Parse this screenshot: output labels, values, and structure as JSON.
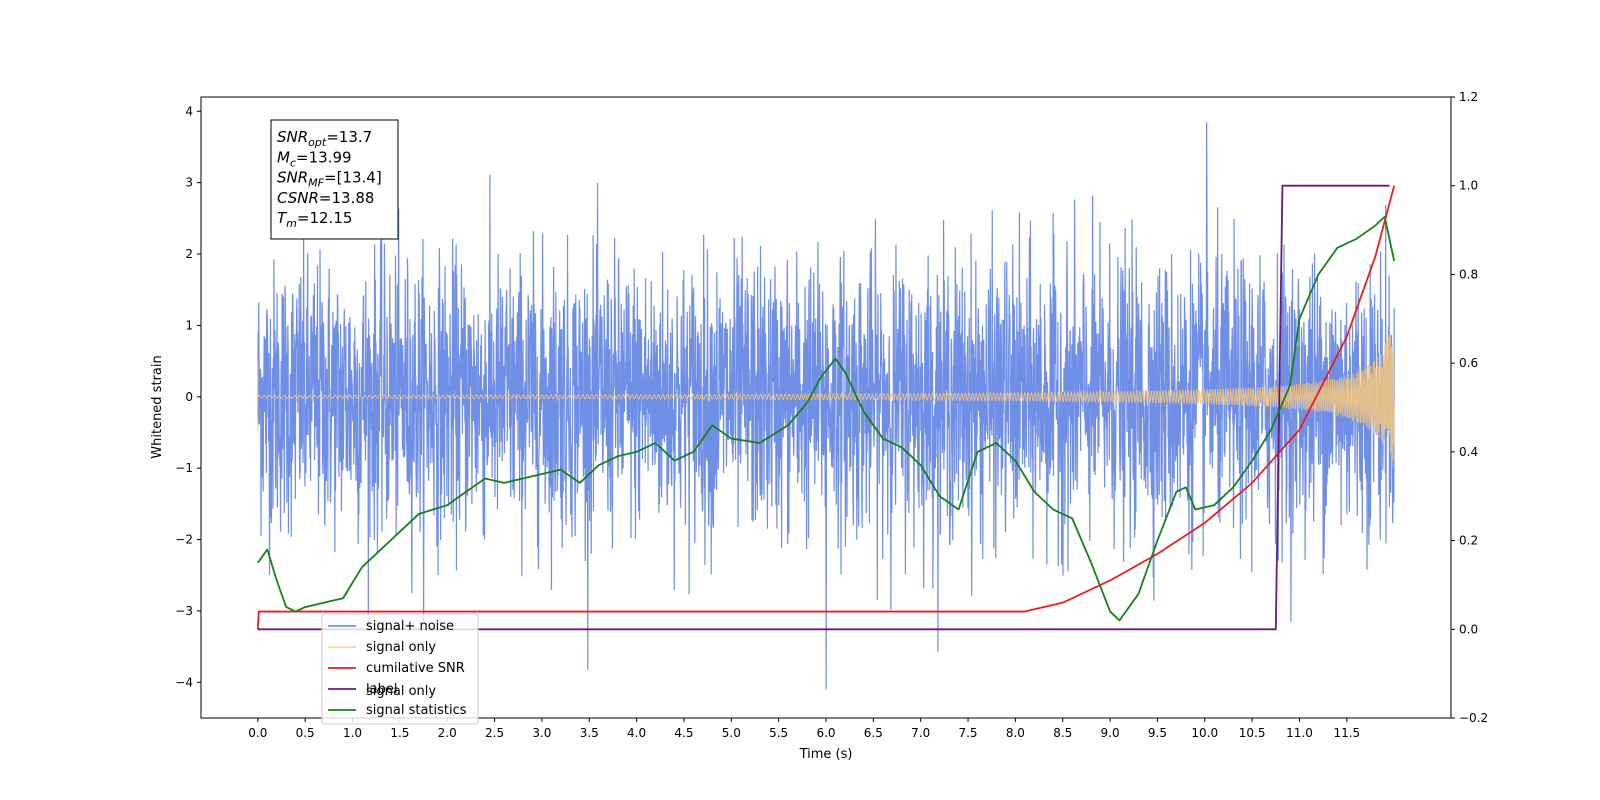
{
  "chart_data": {
    "type": "line",
    "xlabel": "Time (s)",
    "ylabel": "Whitened strain",
    "xlim": [
      -0.6,
      12.6
    ],
    "ylim": [
      -4.5,
      4.2
    ],
    "y2lim": [
      -0.2,
      1.2
    ],
    "x_ticks": [
      "0.0",
      "0.5",
      "1.0",
      "1.5",
      "2.0",
      "2.5",
      "3.0",
      "3.5",
      "4.0",
      "4.5",
      "5.0",
      "5.5",
      "6.0",
      "6.5",
      "7.0",
      "7.5",
      "8.0",
      "8.5",
      "9.0",
      "9.5",
      "10.0",
      "10.5",
      "11.0",
      "11.5"
    ],
    "y_ticks": [
      "−4",
      "−3",
      "−2",
      "−1",
      "0",
      "1",
      "2",
      "3",
      "4"
    ],
    "y2_ticks": [
      "−0.2",
      "0.0",
      "0.2",
      "0.4",
      "0.6",
      "0.8",
      "1.0",
      "1.2"
    ],
    "grid": false,
    "legend_position": "lower-left",
    "series": [
      {
        "name": "signal+ noise",
        "color": "#6f8ee6",
        "axis": "left",
        "kind": "noise",
        "x_range": [
          0.0,
          12.0
        ],
        "std": 0.95,
        "extremes": [
          -4.1,
          3.85
        ]
      },
      {
        "name": "signal only",
        "color": "#f5c77e",
        "axis": "left",
        "kind": "chirp",
        "x_range": [
          0.0,
          12.0
        ],
        "final_amplitude": 1.15,
        "merger_time": 12.15
      },
      {
        "name": "cumilative SNR",
        "color": "#ee1c1c",
        "axis": "right",
        "kind": "curve",
        "points": [
          [
            0.0,
            0.0
          ],
          [
            0.01,
            0.04
          ],
          [
            8.1,
            0.04
          ],
          [
            8.5,
            0.06
          ],
          [
            9.0,
            0.11
          ],
          [
            9.5,
            0.17
          ],
          [
            10.0,
            0.24
          ],
          [
            10.5,
            0.33
          ],
          [
            11.0,
            0.45
          ],
          [
            11.5,
            0.66
          ],
          [
            11.8,
            0.84
          ],
          [
            12.0,
            1.0
          ]
        ]
      },
      {
        "name": "label",
        "color": "#6a1a7a",
        "axis": "right",
        "kind": "curve",
        "points": [
          [
            0.0,
            0.0
          ],
          [
            10.75,
            0.0
          ],
          [
            10.82,
            1.0
          ],
          [
            11.95,
            1.0
          ]
        ]
      },
      {
        "name": "signal statistics",
        "color": "#1a7f1a",
        "axis": "right",
        "kind": "curve",
        "points": [
          [
            0.0,
            0.15
          ],
          [
            0.1,
            0.18
          ],
          [
            0.2,
            0.11
          ],
          [
            0.3,
            0.05
          ],
          [
            0.4,
            0.04
          ],
          [
            0.5,
            0.05
          ],
          [
            0.7,
            0.06
          ],
          [
            0.9,
            0.07
          ],
          [
            1.1,
            0.14
          ],
          [
            1.3,
            0.18
          ],
          [
            1.5,
            0.22
          ],
          [
            1.7,
            0.26
          ],
          [
            2.0,
            0.28
          ],
          [
            2.2,
            0.31
          ],
          [
            2.4,
            0.34
          ],
          [
            2.6,
            0.33
          ],
          [
            2.8,
            0.34
          ],
          [
            3.0,
            0.35
          ],
          [
            3.2,
            0.36
          ],
          [
            3.4,
            0.33
          ],
          [
            3.6,
            0.37
          ],
          [
            3.8,
            0.39
          ],
          [
            4.0,
            0.4
          ],
          [
            4.2,
            0.42
          ],
          [
            4.4,
            0.38
          ],
          [
            4.6,
            0.4
          ],
          [
            4.8,
            0.46
          ],
          [
            5.0,
            0.43
          ],
          [
            5.3,
            0.42
          ],
          [
            5.6,
            0.46
          ],
          [
            5.8,
            0.51
          ],
          [
            5.95,
            0.57
          ],
          [
            6.1,
            0.61
          ],
          [
            6.2,
            0.58
          ],
          [
            6.4,
            0.49
          ],
          [
            6.6,
            0.43
          ],
          [
            6.8,
            0.41
          ],
          [
            7.0,
            0.37
          ],
          [
            7.2,
            0.3
          ],
          [
            7.4,
            0.27
          ],
          [
            7.6,
            0.4
          ],
          [
            7.8,
            0.42
          ],
          [
            8.0,
            0.38
          ],
          [
            8.2,
            0.31
          ],
          [
            8.4,
            0.27
          ],
          [
            8.6,
            0.25
          ],
          [
            8.8,
            0.15
          ],
          [
            9.0,
            0.04
          ],
          [
            9.1,
            0.02
          ],
          [
            9.3,
            0.08
          ],
          [
            9.5,
            0.2
          ],
          [
            9.7,
            0.31
          ],
          [
            9.8,
            0.32
          ],
          [
            9.9,
            0.27
          ],
          [
            10.1,
            0.28
          ],
          [
            10.3,
            0.32
          ],
          [
            10.5,
            0.38
          ],
          [
            10.7,
            0.45
          ],
          [
            10.9,
            0.55
          ],
          [
            11.0,
            0.7
          ],
          [
            11.2,
            0.8
          ],
          [
            11.4,
            0.86
          ],
          [
            11.6,
            0.88
          ],
          [
            11.8,
            0.91
          ],
          [
            11.9,
            0.93
          ],
          [
            12.0,
            0.83
          ]
        ]
      }
    ],
    "annotation": {
      "lines": [
        {
          "var": "SNR",
          "sub": "opt",
          "value": "=13.7"
        },
        {
          "var": "M",
          "sub": "c",
          "value": "=13.99"
        },
        {
          "var": "SNR",
          "sub": "MF",
          "value": "=[13.4]"
        },
        {
          "var": "CSNR",
          "sub": "",
          "value": "=13.88"
        },
        {
          "var": "T",
          "sub": "m",
          "value": "=12.15"
        }
      ]
    },
    "legend_overlap_text": "signal only"
  }
}
